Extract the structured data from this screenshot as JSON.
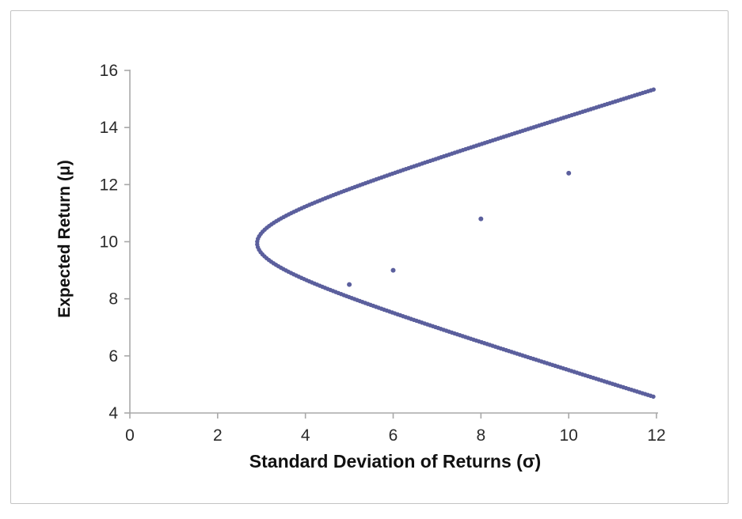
{
  "figure": {
    "background": "#ffffff",
    "border_color": "#c3c3c3"
  },
  "chart_data": {
    "type": "scatter",
    "title": "",
    "xlabel": "Standard Deviation of Returns (σ)",
    "ylabel": "Expected Return (μ)",
    "xlim": [
      0,
      12
    ],
    "ylim": [
      4,
      16
    ],
    "xticks": [
      0,
      2,
      4,
      6,
      8,
      10,
      12
    ],
    "yticks": [
      4,
      6,
      8,
      10,
      12,
      14,
      16
    ],
    "grid": false,
    "legend": "none",
    "axis_color": "#a8a8a8",
    "tick_label_color": "#2a2a2a",
    "series": [
      {
        "name": "efficient-frontier",
        "type": "dotted-curve",
        "color": "#5b5f9d",
        "model": {
          "shape": "hyperbola",
          "sigma_min": 2.9,
          "mu_vertex": 9.95,
          "k": 4.63,
          "mu_range": [
            4.55,
            15.33
          ]
        },
        "points_sigma_mu": [
          [
            11.98,
            4.55
          ],
          [
            11.04,
            5.0
          ],
          [
            8.98,
            6.0
          ],
          [
            6.98,
            7.0
          ],
          [
            5.1,
            8.0
          ],
          [
            3.55,
            9.0
          ],
          [
            2.9,
            9.95
          ],
          [
            3.68,
            11.0
          ],
          [
            5.28,
            12.0
          ],
          [
            7.18,
            13.0
          ],
          [
            9.18,
            14.0
          ],
          [
            11.25,
            15.0
          ],
          [
            11.93,
            15.33
          ]
        ]
      },
      {
        "name": "individual-assets",
        "type": "points",
        "color": "#5b5f9d",
        "marker_radius": 3,
        "points_sigma_mu": [
          [
            5.0,
            8.5
          ],
          [
            6.0,
            9.0
          ],
          [
            8.0,
            10.8
          ],
          [
            10.0,
            12.4
          ]
        ]
      }
    ]
  }
}
